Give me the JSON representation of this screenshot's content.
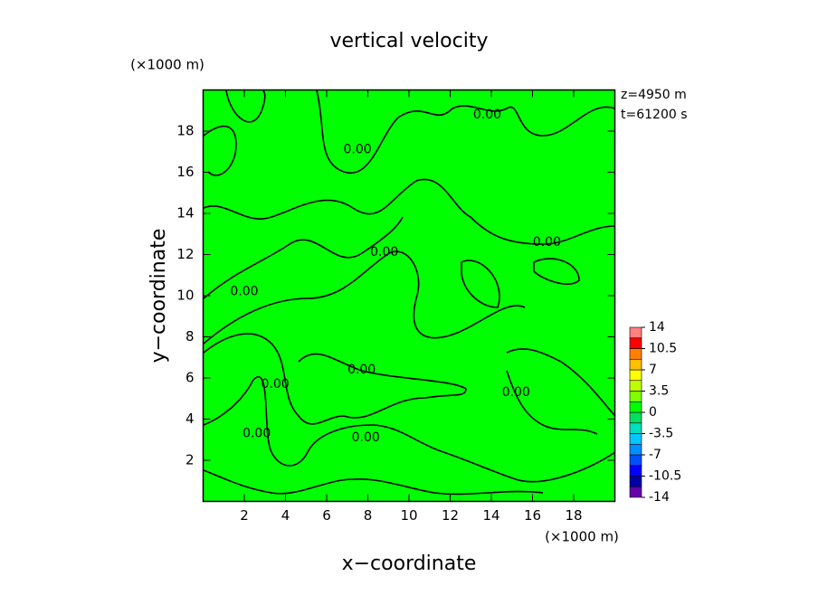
{
  "chart_data": {
    "type": "contour",
    "title": "vertical velocity",
    "xlabel": "x−coordinate",
    "ylabel": "y−coordinate",
    "x_unit": "(×1000 m)",
    "y_unit": "(×1000 m)",
    "annotations": [
      "z=4950 m",
      "t=61200 s"
    ],
    "xlim": [
      0,
      20
    ],
    "ylim": [
      0,
      20
    ],
    "xticks": [
      2,
      4,
      6,
      8,
      10,
      12,
      14,
      16,
      18
    ],
    "yticks": [
      2,
      4,
      6,
      8,
      10,
      12,
      14,
      16,
      18
    ],
    "field_color": "#00ff00",
    "contour_labels": [
      {
        "text": "0.00",
        "x": 13.8,
        "y": 18.8
      },
      {
        "text": "0.00",
        "x": 7.5,
        "y": 17.1
      },
      {
        "text": "0.00",
        "x": 16.7,
        "y": 12.6
      },
      {
        "text": "0.00",
        "x": 8.8,
        "y": 12.1
      },
      {
        "text": "0.00",
        "x": 2.0,
        "y": 10.2
      },
      {
        "text": "0.00",
        "x": 7.7,
        "y": 6.4
      },
      {
        "text": "0.00",
        "x": 3.5,
        "y": 5.7
      },
      {
        "text": "0.00",
        "x": 2.6,
        "y": 3.3
      },
      {
        "text": "0.00",
        "x": 7.9,
        "y": 3.1
      },
      {
        "text": "0.00",
        "x": 15.2,
        "y": 5.3
      }
    ],
    "colorbar": {
      "clim": [
        -14,
        14
      ],
      "levels": [
        -14,
        -12.25,
        -10.5,
        -8.75,
        -7,
        -5.25,
        -3.5,
        -1.75,
        0,
        1.75,
        3.5,
        5.25,
        7,
        8.75,
        10.5,
        12.25,
        14
      ],
      "colors": [
        "#6600aa",
        "#0000aa",
        "#0000ff",
        "#0050ff",
        "#0090ff",
        "#00c8ff",
        "#00e0c0",
        "#00e060",
        "#00ff00",
        "#80ff00",
        "#c0ff00",
        "#ffff00",
        "#ffc000",
        "#ff8000",
        "#ff0000",
        "#ff8080"
      ],
      "ticks": [
        14,
        10.5,
        7,
        3.5,
        0,
        -3.5,
        -7,
        -10.5,
        -14
      ]
    }
  }
}
